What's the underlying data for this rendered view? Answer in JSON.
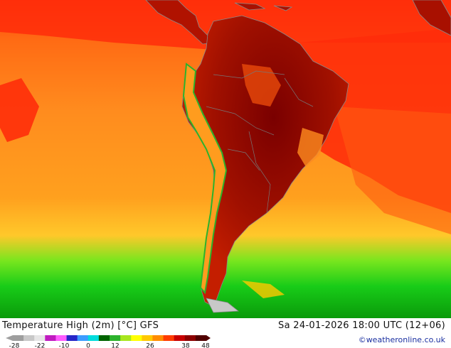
{
  "map": {
    "title": "Temperature High (2m) [°C] GFS",
    "datetime": "Sa 24-01-2026 18:00 UTC (12+06)",
    "credit": "©weatheronline.co.uk",
    "region": "South America",
    "legend": {
      "ticks": [
        "-28",
        "-22",
        "-10",
        "0",
        "12",
        "26",
        "38",
        "48"
      ],
      "colors": [
        "#9e9e9e",
        "#c8c8c8",
        "#e6e6e6",
        "#c01bc0",
        "#ff5cff",
        "#2626c8",
        "#3c9cff",
        "#00dcdc",
        "#006400",
        "#2cb22c",
        "#a8e61e",
        "#ffff00",
        "#ffc800",
        "#ff8c00",
        "#ff3c00",
        "#c80000",
        "#8c0000",
        "#500000"
      ]
    },
    "colors": {
      "ocean_warm": "#ff8c1e",
      "ocean_hot": "#ff2d0a",
      "land_hot": "#a01000",
      "land_very_hot": "#700000",
      "ocean_cool": "#ffb41e",
      "ocean_cold": "#14c814"
    }
  }
}
